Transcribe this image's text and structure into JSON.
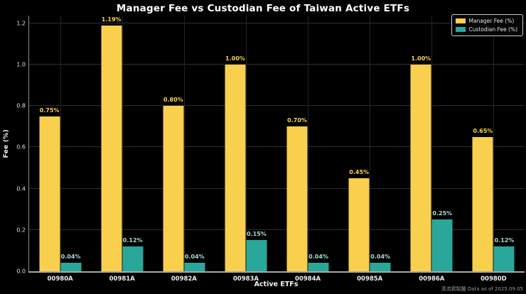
{
  "header": {
    "title": "Manager Fee vs Custodian Fee of Taiwan Active ETFs"
  },
  "chart_data": {
    "type": "bar",
    "title": "Manager Fee vs Custodian Fee of Taiwan Active ETFs",
    "xlabel": "Active ETFs",
    "ylabel": "Fee (%)",
    "categories": [
      "00980A",
      "00981A",
      "00982A",
      "00983A",
      "00984A",
      "00985A",
      "00986A",
      "00980D"
    ],
    "series": [
      {
        "name": "Manager Fee (%)",
        "color": "#F8D04E",
        "label_color": "#F8D04E",
        "values": [
          0.75,
          1.19,
          0.8,
          1.0,
          0.7,
          0.45,
          1.0,
          0.65
        ],
        "labels": [
          "0.75%",
          "1.19%",
          "0.80%",
          "1.00%",
          "0.70%",
          "0.45%",
          "1.00%",
          "0.65%"
        ]
      },
      {
        "name": "Custodian Fee (%)",
        "color": "#2AA79B",
        "label_color": "#A5DED7",
        "values": [
          0.04,
          0.12,
          0.04,
          0.15,
          0.04,
          0.04,
          0.25,
          0.12
        ],
        "labels": [
          "0.04%",
          "0.12%",
          "0.04%",
          "0.15%",
          "0.04%",
          "0.04%",
          "0.25%",
          "0.12%"
        ]
      }
    ],
    "ylim": [
      0.0,
      1.2
    ],
    "ytick_step": 0.2,
    "yticks": [
      "0.0",
      "0.2",
      "0.4",
      "0.6",
      "0.8",
      "1.0",
      "1.2"
    ],
    "grid": true,
    "legend_position": "upper right",
    "theme": {
      "background": "#000000",
      "gridline": "#2e2e2e",
      "tick_text": "#e8e8e8",
      "spine": "#a8a8a8"
    }
  },
  "legend": {
    "items": [
      {
        "label": "Manager Fee (%)",
        "color": "#F8D04E"
      },
      {
        "label": "Custodian Fee (%)",
        "color": "#2AA79B"
      }
    ]
  },
  "footer": {
    "credit": "清流君製圖",
    "data_as_of": "Data as of 2025.09.05"
  }
}
